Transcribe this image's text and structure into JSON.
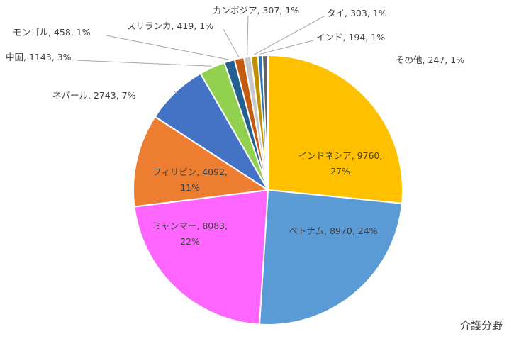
{
  "chart_data": {
    "type": "pie",
    "slices": [
      {
        "label": "インドネシア",
        "value": 9760,
        "pct": "27%",
        "color": "#FFC000"
      },
      {
        "label": "ベトナム",
        "value": 8970,
        "pct": "24%",
        "color": "#5B9BD5"
      },
      {
        "label": "ミャンマー",
        "value": 8083,
        "pct": "22%",
        "color": "#FF66FF"
      },
      {
        "label": "フィリピン",
        "value": 4092,
        "pct": "11%",
        "color": "#ED7D31"
      },
      {
        "label": "ネパール",
        "value": 2743,
        "pct": "7%",
        "color": "#4472C4"
      },
      {
        "label": "中国",
        "value": 1143,
        "pct": "3%",
        "color": "#92D050"
      },
      {
        "label": "モンゴル",
        "value": 458,
        "pct": "1%",
        "color": "#255E91"
      },
      {
        "label": "スリランカ",
        "value": 419,
        "pct": "1%",
        "color": "#C55A11"
      },
      {
        "label": "カンボジア",
        "value": 307,
        "pct": "1%",
        "color": "#C9C9C9"
      },
      {
        "label": "タイ",
        "value": 303,
        "pct": "1%",
        "color": "#BF9000"
      },
      {
        "label": "インド",
        "value": 194,
        "pct": "1%",
        "color": "#2E75B6"
      },
      {
        "label": "その他",
        "value": 247,
        "pct": "1%",
        "color": "#636363"
      }
    ],
    "corner_label": "介護分野"
  }
}
